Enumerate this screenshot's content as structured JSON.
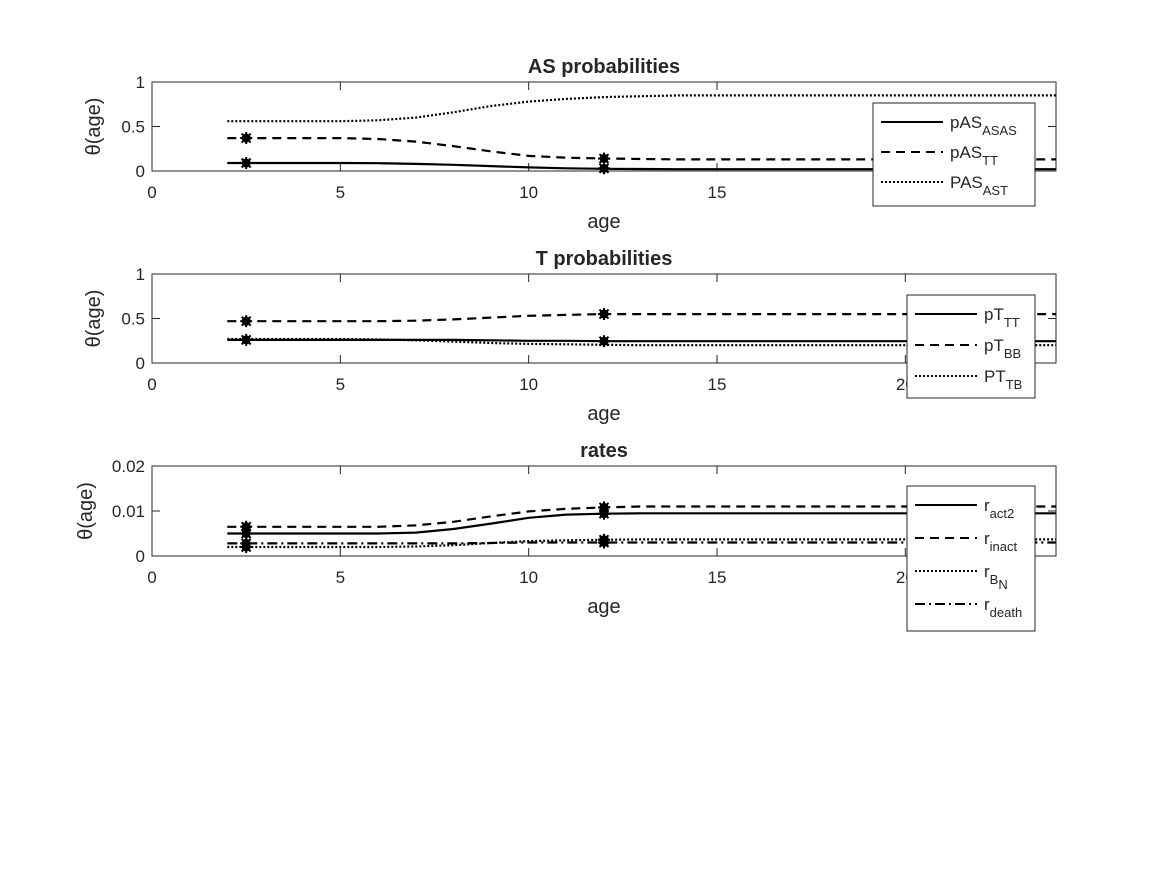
{
  "chart_data": [
    {
      "type": "line",
      "title": "AS probabilities",
      "xlabel": "age",
      "ylabel": "θ(age)",
      "xlim": [
        0,
        24
      ],
      "ylim": [
        0,
        1
      ],
      "xticks": [
        "0",
        "5",
        "10",
        "15"
      ],
      "yticks": [
        "0",
        "0.5",
        "1"
      ],
      "grid": false,
      "legend_placement": "right",
      "series": [
        {
          "name": "pAS_ASAS",
          "label": "pAS",
          "sub": "ASAS",
          "style": "solid",
          "x": [
            2,
            3,
            4,
            5,
            6,
            7,
            8,
            9,
            10,
            11,
            12,
            13,
            14,
            15,
            16,
            17,
            18,
            19,
            20,
            21,
            22,
            23,
            24
          ],
          "y": [
            0.09,
            0.09,
            0.09,
            0.09,
            0.088,
            0.08,
            0.07,
            0.055,
            0.04,
            0.03,
            0.025,
            0.022,
            0.02,
            0.02,
            0.02,
            0.02,
            0.02,
            0.02,
            0.02,
            0.02,
            0.02,
            0.02,
            0.02
          ],
          "markers_x": [
            2.5,
            12
          ],
          "markers_y": [
            0.09,
            0.03
          ]
        },
        {
          "name": "pAS_TT",
          "label": "pAS",
          "sub": "TT",
          "style": "dashed",
          "x": [
            2,
            3,
            4,
            5,
            6,
            7,
            8,
            9,
            10,
            11,
            12,
            13,
            14,
            15,
            16,
            17,
            18,
            19,
            20,
            21,
            22,
            23,
            24
          ],
          "y": [
            0.37,
            0.37,
            0.37,
            0.37,
            0.36,
            0.33,
            0.28,
            0.22,
            0.17,
            0.15,
            0.14,
            0.135,
            0.13,
            0.13,
            0.13,
            0.13,
            0.13,
            0.13,
            0.13,
            0.13,
            0.13,
            0.13,
            0.13
          ],
          "markers_x": [
            2.5,
            12
          ],
          "markers_y": [
            0.37,
            0.14
          ]
        },
        {
          "name": "PAS_AST",
          "label": "PAS",
          "sub": "AST",
          "style": "dotted",
          "x": [
            2,
            3,
            4,
            5,
            6,
            7,
            8,
            9,
            10,
            11,
            12,
            13,
            14,
            15,
            16,
            17,
            18,
            19,
            20,
            21,
            22,
            23,
            24
          ],
          "y": [
            0.56,
            0.56,
            0.56,
            0.56,
            0.57,
            0.6,
            0.66,
            0.73,
            0.78,
            0.81,
            0.83,
            0.84,
            0.85,
            0.85,
            0.85,
            0.85,
            0.85,
            0.85,
            0.85,
            0.85,
            0.85,
            0.85,
            0.85
          ],
          "markers_x": [],
          "markers_y": []
        }
      ]
    },
    {
      "type": "line",
      "title": "T probabilities",
      "xlabel": "age",
      "ylabel": "θ(age)",
      "xlim": [
        0,
        24
      ],
      "ylim": [
        0,
        1
      ],
      "xticks": [
        "0",
        "5",
        "10",
        "15",
        "20"
      ],
      "yticks": [
        "0",
        "0.5",
        "1"
      ],
      "grid": false,
      "legend_placement": "right",
      "series": [
        {
          "name": "pT_TT",
          "label": "pT",
          "sub": "TT",
          "style": "solid",
          "x": [
            2,
            3,
            4,
            5,
            6,
            7,
            8,
            9,
            10,
            11,
            12,
            13,
            14,
            15,
            16,
            17,
            18,
            19,
            20,
            21,
            22,
            23,
            24
          ],
          "y": [
            0.26,
            0.26,
            0.26,
            0.26,
            0.26,
            0.26,
            0.26,
            0.255,
            0.25,
            0.25,
            0.245,
            0.245,
            0.245,
            0.245,
            0.245,
            0.245,
            0.245,
            0.245,
            0.245,
            0.245,
            0.245,
            0.245,
            0.245
          ],
          "markers_x": [
            2.5,
            12
          ],
          "markers_y": [
            0.26,
            0.245
          ]
        },
        {
          "name": "pT_BB",
          "label": "pT",
          "sub": "BB",
          "style": "dashed",
          "x": [
            2,
            3,
            4,
            5,
            6,
            7,
            8,
            9,
            10,
            11,
            12,
            13,
            14,
            15,
            16,
            17,
            18,
            19,
            20,
            21,
            22,
            23,
            24
          ],
          "y": [
            0.47,
            0.47,
            0.47,
            0.47,
            0.47,
            0.475,
            0.49,
            0.51,
            0.53,
            0.54,
            0.55,
            0.55,
            0.55,
            0.55,
            0.55,
            0.55,
            0.55,
            0.55,
            0.55,
            0.55,
            0.55,
            0.55,
            0.55
          ],
          "markers_x": [
            2.5,
            12
          ],
          "markers_y": [
            0.47,
            0.55
          ]
        },
        {
          "name": "PT_TB",
          "label": "PT",
          "sub": "TB",
          "style": "dotted",
          "x": [
            2,
            3,
            4,
            5,
            6,
            7,
            8,
            9,
            10,
            11,
            12,
            13,
            14,
            15,
            16,
            17,
            18,
            19,
            20,
            21,
            22,
            23,
            24
          ],
          "y": [
            0.27,
            0.27,
            0.27,
            0.27,
            0.265,
            0.255,
            0.24,
            0.225,
            0.215,
            0.21,
            0.205,
            0.2,
            0.2,
            0.2,
            0.2,
            0.2,
            0.2,
            0.2,
            0.2,
            0.2,
            0.2,
            0.2,
            0.2
          ],
          "markers_x": [],
          "markers_y": []
        }
      ]
    },
    {
      "type": "line",
      "title": "rates",
      "xlabel": "age",
      "ylabel": "θ(age)",
      "xlim": [
        0,
        24
      ],
      "ylim": [
        0,
        0.02
      ],
      "xticks": [
        "0",
        "5",
        "10",
        "15",
        "20"
      ],
      "yticks": [
        "0",
        "0.01",
        "0.02"
      ],
      "grid": false,
      "legend_placement": "right",
      "series": [
        {
          "name": "r_act2",
          "label": "r",
          "sub": "act2",
          "style": "solid",
          "x": [
            2,
            3,
            4,
            5,
            6,
            7,
            8,
            9,
            10,
            11,
            12,
            13,
            14,
            15,
            16,
            17,
            18,
            19,
            20,
            21,
            22,
            23,
            24
          ],
          "y": [
            0.005,
            0.005,
            0.005,
            0.005,
            0.005,
            0.0052,
            0.006,
            0.0072,
            0.0085,
            0.0092,
            0.0094,
            0.0095,
            0.0095,
            0.0095,
            0.0095,
            0.0095,
            0.0095,
            0.0095,
            0.0095,
            0.0095,
            0.0095,
            0.0095,
            0.0095
          ],
          "markers_x": [
            2.5,
            12
          ],
          "markers_y": [
            0.005,
            0.0094
          ]
        },
        {
          "name": "r_inact",
          "label": "r",
          "sub": "inact",
          "style": "dashed",
          "x": [
            2,
            3,
            4,
            5,
            6,
            7,
            8,
            9,
            10,
            11,
            12,
            13,
            14,
            15,
            16,
            17,
            18,
            19,
            20,
            21,
            22,
            23,
            24
          ],
          "y": [
            0.0065,
            0.0065,
            0.0065,
            0.0065,
            0.0065,
            0.0068,
            0.0076,
            0.0088,
            0.0099,
            0.0105,
            0.0108,
            0.011,
            0.011,
            0.011,
            0.011,
            0.011,
            0.011,
            0.011,
            0.011,
            0.011,
            0.011,
            0.011,
            0.011
          ],
          "markers_x": [
            2.5,
            12
          ],
          "markers_y": [
            0.0065,
            0.0108
          ]
        },
        {
          "name": "r_B_N",
          "label": "r",
          "sub": "B",
          "subsub": "N",
          "style": "dotted",
          "x": [
            2,
            3,
            4,
            5,
            6,
            7,
            8,
            9,
            10,
            11,
            12,
            13,
            14,
            15,
            16,
            17,
            18,
            19,
            20,
            21,
            22,
            23,
            24
          ],
          "y": [
            0.002,
            0.002,
            0.002,
            0.002,
            0.002,
            0.0021,
            0.0024,
            0.0029,
            0.0033,
            0.0035,
            0.0036,
            0.0037,
            0.0037,
            0.0037,
            0.0037,
            0.0037,
            0.0037,
            0.0037,
            0.0037,
            0.0037,
            0.0037,
            0.0037,
            0.0037
          ],
          "markers_x": [
            2.5,
            12
          ],
          "markers_y": [
            0.002,
            0.0036
          ]
        },
        {
          "name": "r_death",
          "label": "r",
          "sub": "death",
          "style": "dashdot",
          "x": [
            2,
            3,
            4,
            5,
            6,
            7,
            8,
            9,
            10,
            11,
            12,
            13,
            14,
            15,
            16,
            17,
            18,
            19,
            20,
            21,
            22,
            23,
            24
          ],
          "y": [
            0.0028,
            0.0028,
            0.0028,
            0.0028,
            0.0028,
            0.0028,
            0.0028,
            0.0029,
            0.003,
            0.003,
            0.003,
            0.003,
            0.003,
            0.003,
            0.003,
            0.003,
            0.003,
            0.003,
            0.003,
            0.003,
            0.003,
            0.003,
            0.003
          ],
          "markers_x": [
            2.5,
            12
          ],
          "markers_y": [
            0.0028,
            0.003
          ]
        }
      ]
    }
  ]
}
